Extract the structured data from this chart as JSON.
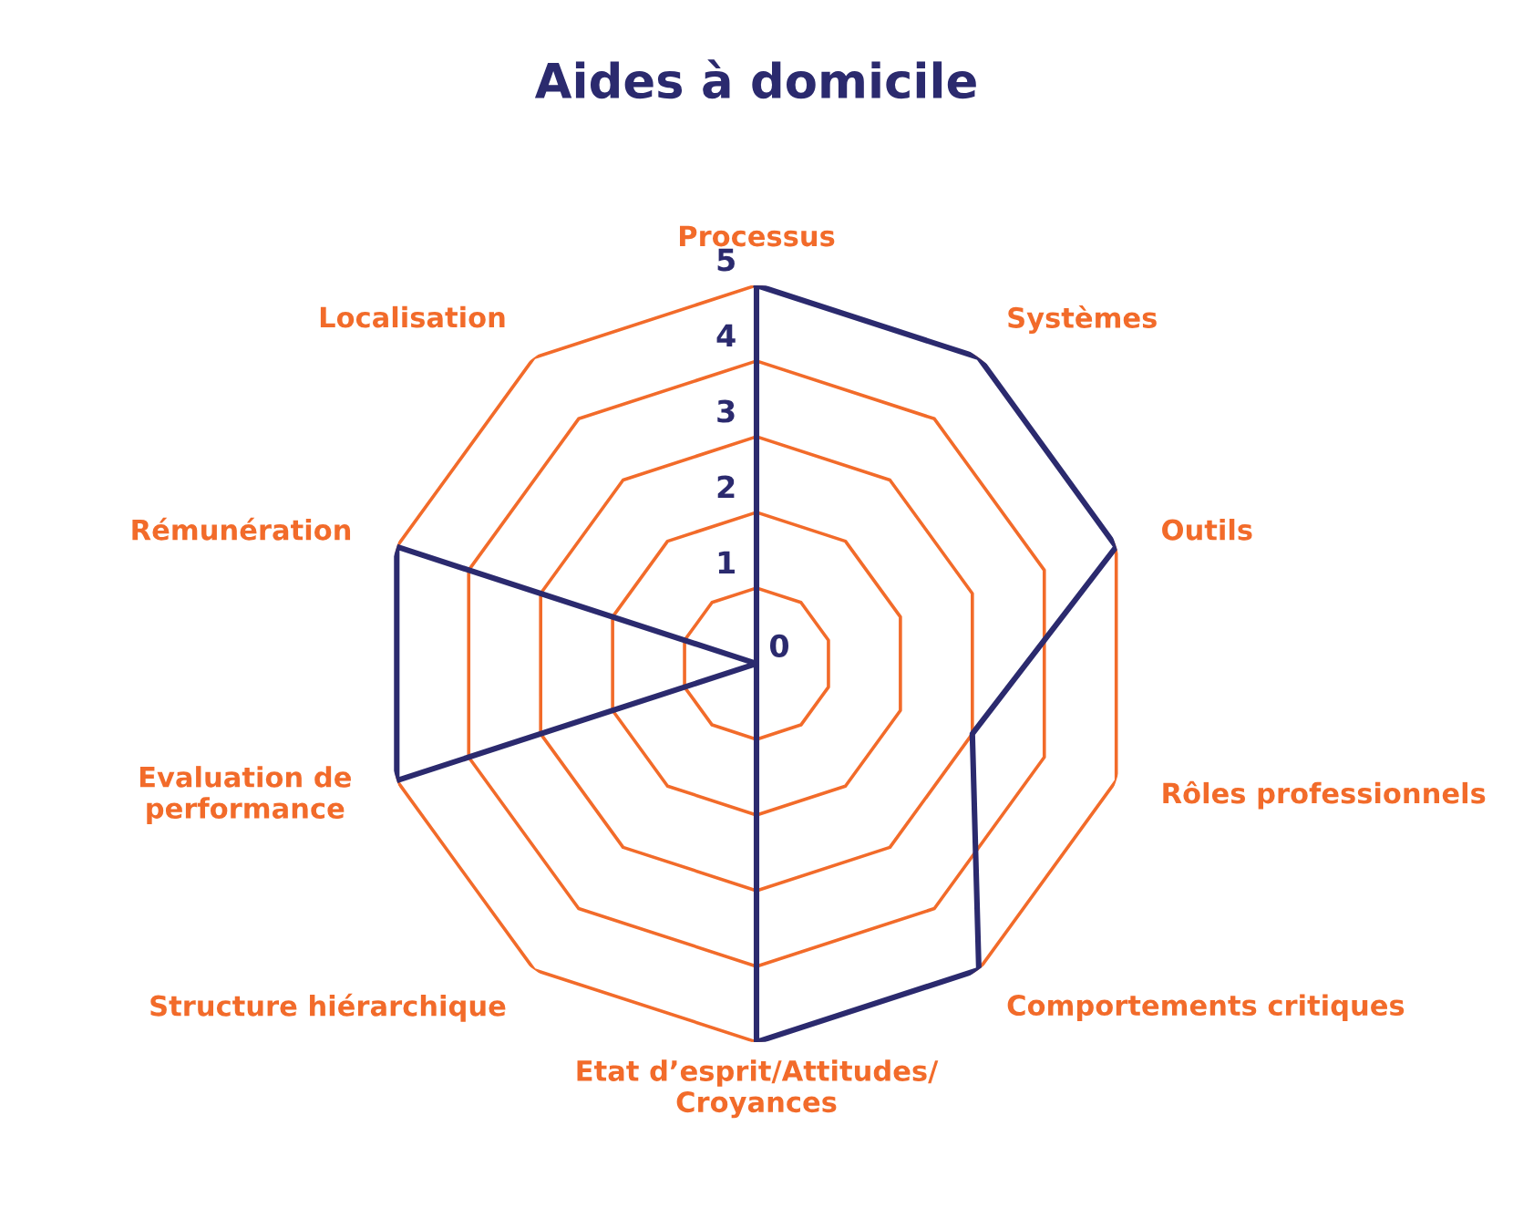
{
  "chart_data": {
    "type": "radar",
    "title": "Aides à domicile",
    "categories": [
      "Processus",
      "Systèmes",
      "Outils",
      "Rôles professionnels",
      "Comportements critiques",
      "Etat d’esprit/Attitudes/\nCroyances",
      "Structure hiérarchique",
      "Evaluation de\nperformance",
      "Rémunération",
      "Localisation"
    ],
    "series": [
      {
        "color": "#2b2a6e",
        "values": [
          5,
          5,
          5,
          3,
          5,
          5,
          0,
          5,
          5,
          0
        ]
      }
    ],
    "ylim": [
      0,
      5
    ],
    "yticks": [
      0,
      1,
      2,
      3,
      4,
      5
    ],
    "grid": true,
    "legend": false
  }
}
